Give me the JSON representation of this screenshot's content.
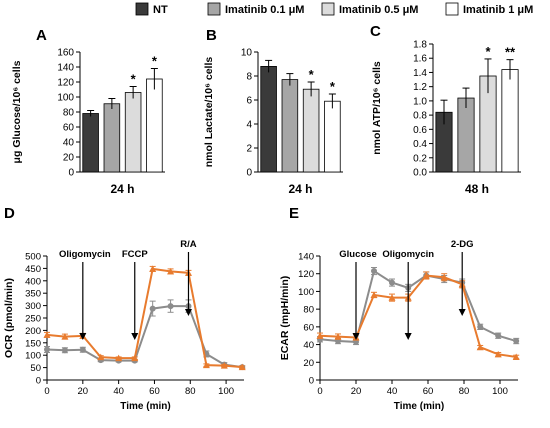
{
  "legend": [
    {
      "label": "NT",
      "color": "#3a3a3a"
    },
    {
      "label": "Imatinib 0.1 μM",
      "color": "#a6a6a6"
    },
    {
      "label": "Imatinib 0.5 μM",
      "color": "#dcdcdc"
    },
    {
      "label": "Imatinib 1 μM",
      "color": "#ffffff"
    }
  ],
  "chart_data": [
    {
      "panel": "A",
      "type": "bar",
      "categories": [
        "NT",
        "Imatinib 0.1 μM",
        "Imatinib 0.5 μM",
        "Imatinib 1 μM"
      ],
      "values": [
        78,
        91,
        106,
        124
      ],
      "errors": [
        4,
        7,
        8,
        14
      ],
      "significance": [
        "",
        "",
        "*",
        "*"
      ],
      "xlabel": "24 h",
      "ylabel": "μg Glucose/10⁶ cells",
      "ylim": [
        0,
        160
      ],
      "yticks": [
        0,
        20,
        40,
        60,
        80,
        100,
        120,
        140,
        160
      ]
    },
    {
      "panel": "B",
      "type": "bar",
      "categories": [
        "NT",
        "Imatinib 0.1 μM",
        "Imatinib 0.5 μM",
        "Imatinib 1 μM"
      ],
      "values": [
        8.8,
        7.7,
        6.9,
        5.9
      ],
      "errors": [
        0.5,
        0.5,
        0.6,
        0.6
      ],
      "significance": [
        "",
        "",
        "*",
        "*"
      ],
      "xlabel": "24 h",
      "ylabel": "nmol Lactate/10⁶ cells",
      "ylim": [
        0,
        10
      ],
      "yticks": [
        0,
        2,
        4,
        6,
        8,
        10
      ]
    },
    {
      "panel": "C",
      "type": "bar",
      "categories": [
        "NT",
        "Imatinib 0.1 μM",
        "Imatinib 0.5 μM",
        "Imatinib 1 μM"
      ],
      "values": [
        0.84,
        1.04,
        1.35,
        1.44
      ],
      "errors": [
        0.17,
        0.14,
        0.24,
        0.14
      ],
      "significance": [
        "",
        "",
        "*",
        "**"
      ],
      "xlabel": "48 h",
      "ylabel": "nmol ATP/10⁶ cells",
      "ylim": [
        0,
        1.8
      ],
      "yticks": [
        0.0,
        0.2,
        0.4,
        0.6,
        0.8,
        1.0,
        1.2,
        1.4,
        1.6,
        1.8
      ]
    },
    {
      "panel": "D",
      "type": "line",
      "xlabel": "Time (min)",
      "ylabel": "OCR (pmol/min)",
      "xlim": [
        0,
        110
      ],
      "xticks": [
        0,
        20,
        40,
        60,
        80,
        100
      ],
      "ylim": [
        0,
        500
      ],
      "yticks": [
        0,
        50,
        100,
        150,
        200,
        250,
        300,
        350,
        400,
        450,
        500
      ],
      "series": [
        {
          "color": "#8c8c8c",
          "marker": "circle",
          "x": [
            0,
            10,
            20,
            30,
            40,
            49,
            59,
            69,
            79,
            89,
            99,
            109
          ],
          "y": [
            123,
            120,
            122,
            80,
            78,
            78,
            288,
            298,
            298,
            105,
            62,
            52
          ],
          "errors": [
            12,
            10,
            10,
            6,
            5,
            5,
            30,
            25,
            25,
            12,
            8,
            5
          ]
        },
        {
          "color": "#e87b2e",
          "marker": "triangle",
          "x": [
            0,
            10,
            20,
            30,
            40,
            49,
            59,
            69,
            79,
            89,
            99,
            109
          ],
          "y": [
            182,
            175,
            178,
            92,
            88,
            88,
            448,
            438,
            432,
            60,
            58,
            52
          ],
          "errors": [
            10,
            10,
            10,
            6,
            5,
            5,
            10,
            10,
            10,
            5,
            5,
            5
          ]
        }
      ],
      "annotations": [
        {
          "label": "Oligomycin",
          "x": 20
        },
        {
          "label": "FCCP",
          "x": 49
        },
        {
          "label": "R/A",
          "x": 79
        }
      ]
    },
    {
      "panel": "E",
      "type": "line",
      "xlabel": "Time (min)",
      "ylabel": "ECAR (mpH/min)",
      "xlim": [
        0,
        110
      ],
      "xticks": [
        0,
        20,
        40,
        60,
        80,
        100
      ],
      "ylim": [
        0,
        140
      ],
      "yticks": [
        0,
        20,
        40,
        60,
        80,
        100,
        120,
        140
      ],
      "series": [
        {
          "color": "#8c8c8c",
          "marker": "circle",
          "x": [
            0,
            10,
            20,
            30,
            40,
            49,
            59,
            69,
            79,
            89,
            99,
            109
          ],
          "y": [
            46,
            44,
            43,
            123,
            110,
            104,
            118,
            114,
            110,
            60,
            50,
            44
          ],
          "errors": [
            3,
            3,
            3,
            4,
            4,
            4,
            4,
            4,
            4,
            3,
            3,
            3
          ]
        },
        {
          "color": "#e87b2e",
          "marker": "triangle",
          "x": [
            0,
            10,
            20,
            30,
            40,
            49,
            59,
            69,
            79,
            89,
            99,
            109
          ],
          "y": [
            50,
            49,
            48,
            96,
            93,
            93,
            118,
            116,
            108,
            37,
            29,
            26
          ],
          "errors": [
            3,
            3,
            3,
            3,
            4,
            4,
            4,
            4,
            4,
            2,
            2,
            2
          ]
        }
      ],
      "annotations": [
        {
          "label": "Glucose",
          "x": 20
        },
        {
          "label": "Oligomycin",
          "x": 49
        },
        {
          "label": "2-DG",
          "x": 79
        }
      ]
    }
  ]
}
